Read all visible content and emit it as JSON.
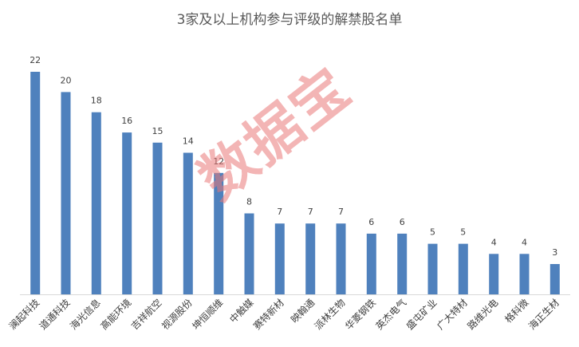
{
  "chart_data": {
    "type": "bar",
    "title": "3家及以上机构参与评级的解禁股名单",
    "categories": [
      "澜起科技",
      "道通科技",
      "海光信息",
      "高能环境",
      "吉祥航空",
      "视源股份",
      "坤恒顺维",
      "中触媒",
      "赛特新材",
      "映翰通",
      "派林生物",
      "华菱钢铁",
      "英杰电气",
      "盛屯矿业",
      "广大特材",
      "路维光电",
      "格科微",
      "海正生材"
    ],
    "values": [
      22,
      20,
      18,
      16,
      15,
      14,
      12,
      8,
      7,
      7,
      7,
      6,
      6,
      5,
      5,
      4,
      4,
      3
    ],
    "ylim": [
      0,
      22
    ],
    "grid": false,
    "legend": "none",
    "bar_color": "#4f81bd"
  },
  "watermark": "数据宝"
}
